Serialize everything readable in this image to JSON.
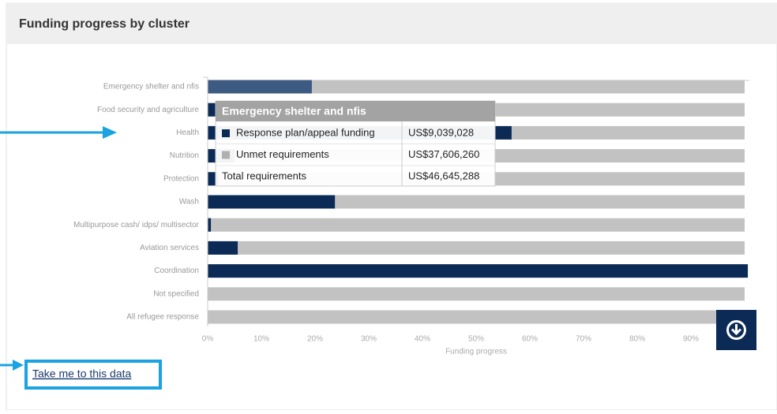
{
  "header": {
    "title": "Funding progress by cluster"
  },
  "chart_data": {
    "type": "hbar",
    "categories": [
      "Emergency shelter and nfis",
      "Food security and agriculture",
      "Health",
      "Nutrition",
      "Protection",
      "Wash",
      "Multipurpose cash/ idps/ multisector",
      "Aviation services",
      "Coordination",
      "Not specified",
      "All refugee response"
    ],
    "series": [
      {
        "color": "#0b2a55",
        "hover_color": "#3d5a82",
        "values": [
          19.4,
          10,
          56.6,
          5,
          2,
          23.7,
          0.6,
          5.6,
          100.6,
          0,
          0
        ]
      }
    ],
    "track_color": "#c2c2c2",
    "xlim": [
      0,
      100
    ],
    "xticks": [
      {
        "value": 0,
        "label": "0%"
      },
      {
        "value": 10,
        "label": "10%"
      },
      {
        "value": 20,
        "label": "20%"
      },
      {
        "value": 30,
        "label": "30%"
      },
      {
        "value": 40,
        "label": "40%"
      },
      {
        "value": 50,
        "label": "50%"
      },
      {
        "value": 60,
        "label": "60%"
      },
      {
        "value": 70,
        "label": "70%"
      },
      {
        "value": 80,
        "label": "80%"
      },
      {
        "value": 90,
        "label": "90%"
      }
    ],
    "xlabel": "Funding progress"
  },
  "tooltip": {
    "title": "Emergency shelter and nfis",
    "rows": [
      {
        "label": "Response plan/appeal funding",
        "value": "US$9,039,028",
        "color": "#0b2a55"
      },
      {
        "label": "Unmet requirements",
        "value": "US$37,606,260",
        "color": "#b0b0b0"
      },
      {
        "label": "Total requirements",
        "value": "US$46,645,288"
      }
    ]
  },
  "link": {
    "text": "Take me to this data"
  }
}
